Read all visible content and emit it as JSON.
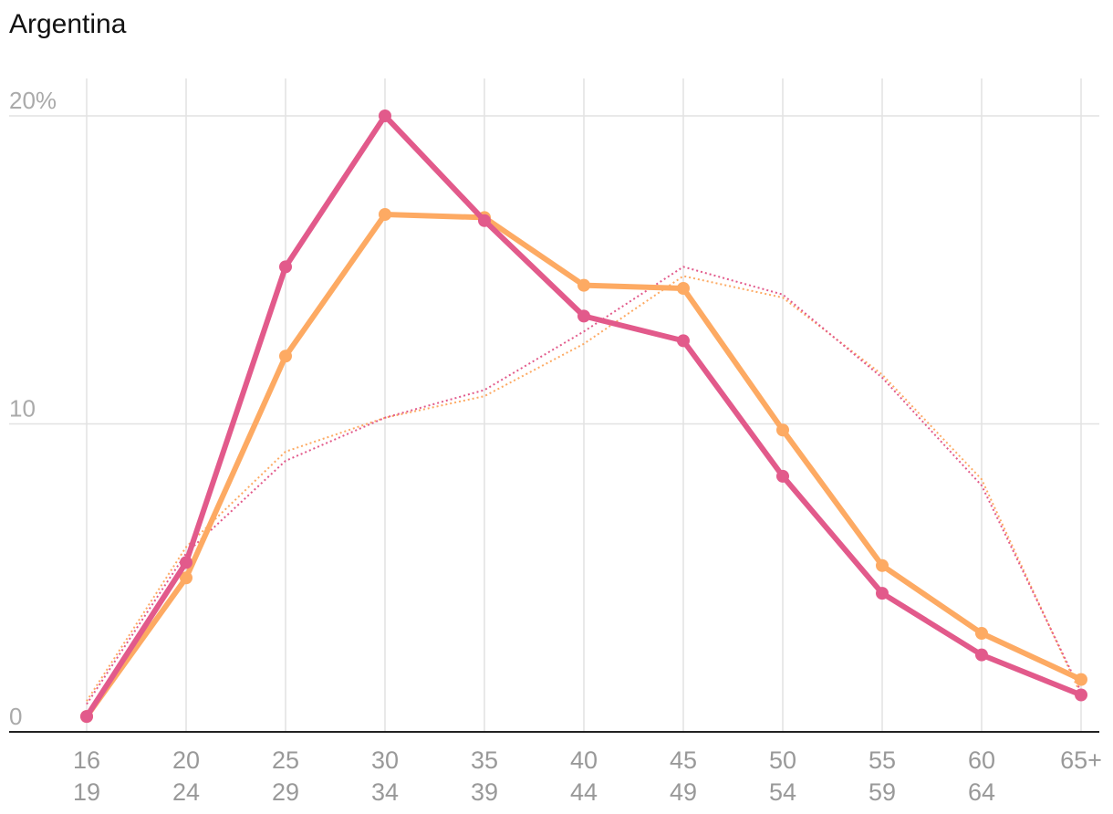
{
  "chart_data": {
    "type": "line",
    "title": "Argentina",
    "categories": [
      "16-19",
      "20-24",
      "25-29",
      "30-34",
      "35-39",
      "40-44",
      "45-49",
      "50-54",
      "55-59",
      "60-64",
      "65+"
    ],
    "x_tick_labels": [
      [
        "16",
        "19"
      ],
      [
        "20",
        "24"
      ],
      [
        "25",
        "29"
      ],
      [
        "30",
        "34"
      ],
      [
        "35",
        "39"
      ],
      [
        "40",
        "44"
      ],
      [
        "45",
        "49"
      ],
      [
        "50",
        "54"
      ],
      [
        "55",
        "59"
      ],
      [
        "60",
        "64"
      ],
      [
        "65+",
        ""
      ]
    ],
    "y_tick_labels": [
      "0",
      "10",
      "20%"
    ],
    "y_ticks": [
      0,
      10,
      20
    ],
    "ylim": [
      0,
      20
    ],
    "grid": true,
    "series": [
      {
        "color": "#FDAA63",
        "style": "solid",
        "values": [
          0.5,
          5.0,
          12.2,
          16.8,
          16.7,
          14.5,
          14.4,
          9.8,
          5.4,
          3.2,
          1.7
        ]
      },
      {
        "color": "#E25A8B",
        "style": "solid",
        "values": [
          0.5,
          5.5,
          15.1,
          20.0,
          16.6,
          13.5,
          12.7,
          8.3,
          4.5,
          2.5,
          1.2
        ]
      },
      {
        "color": "#FDAA63",
        "style": "dotted",
        "values": [
          1.0,
          6.0,
          9.1,
          10.2,
          10.9,
          12.6,
          14.8,
          14.1,
          11.6,
          8.2,
          1.2
        ]
      },
      {
        "color": "#E25A8B",
        "style": "dotted",
        "values": [
          0.9,
          5.8,
          8.8,
          10.2,
          11.1,
          13.0,
          15.1,
          14.2,
          11.5,
          8.0,
          1.3
        ]
      }
    ]
  }
}
